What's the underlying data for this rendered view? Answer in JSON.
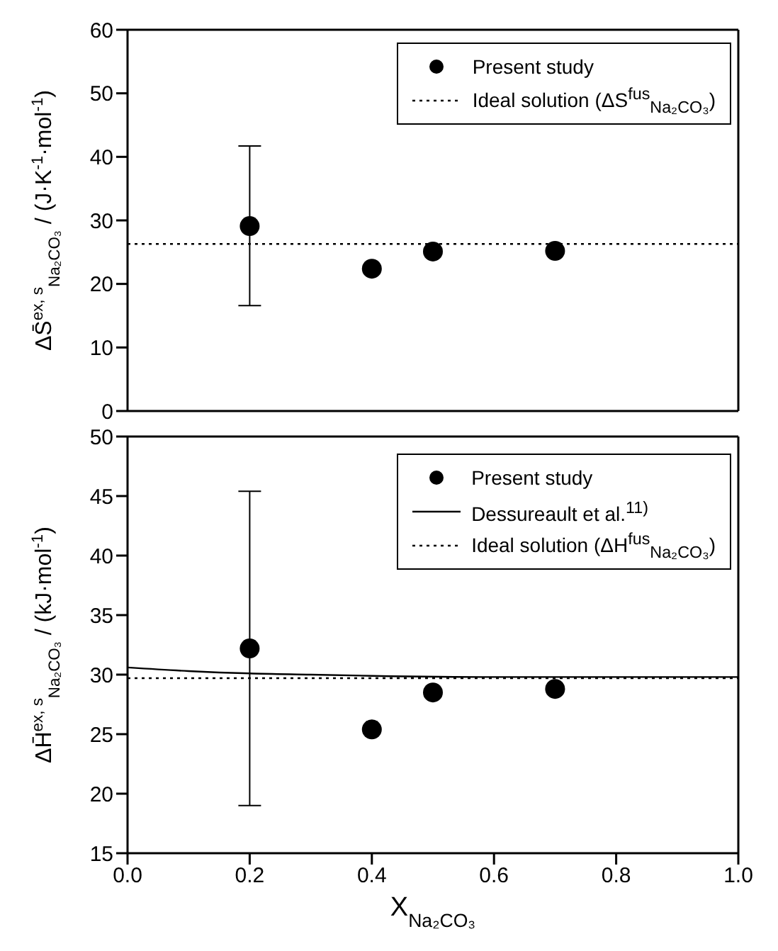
{
  "chart_data": [
    {
      "type": "scatter",
      "ylabel": "ΔS̄$^{ex, s}$$_{Na₂CO₃}$ / (J·K$^{-1}$·mol$^{-1}$)",
      "xlim": [
        0,
        1
      ],
      "xticks": [
        0,
        0.2,
        0.4,
        0.6,
        0.8,
        1.0
      ],
      "ylim": [
        0,
        60
      ],
      "yticks": [
        0,
        10,
        20,
        30,
        40,
        50,
        60
      ],
      "tick_labels": "y",
      "legend": "top right",
      "series": [
        {
          "name": "Present study",
          "marker": "circle",
          "color": "#000000",
          "x": [
            0.2,
            0.4,
            0.5,
            0.7
          ],
          "values": [
            29.1,
            22.4,
            25.1,
            25.2
          ],
          "errors": [
            [
              16.6,
              41.7
            ],
            null,
            null,
            null
          ]
        },
        {
          "name": "Ideal solution (ΔS$^{fus}$$_{Na₂CO₃}$)",
          "type": "line",
          "color": "#000000",
          "line_style": "dotted",
          "x": [
            0,
            1
          ],
          "values": [
            26.3,
            26.3
          ]
        }
      ]
    },
    {
      "type": "scatter",
      "ylabel": "ΔH̄$^{ex, s}$$_{Na₂CO₃}$ / (kJ·mol$^{-1}$)",
      "xlabel": "X$_{Na₂CO₃}$",
      "xlim": [
        0,
        1
      ],
      "xticks": [
        {
          "value": 0,
          "label": "0.0"
        },
        0.2,
        0.4,
        0.6,
        0.8,
        {
          "value": 1,
          "label": "1.0"
        }
      ],
      "ylim": [
        15,
        50
      ],
      "yticks": [
        15,
        20,
        25,
        30,
        35,
        40,
        45,
        50
      ],
      "legend": "top right",
      "series": [
        {
          "name": "Present study",
          "marker": "circle",
          "color": "#000000",
          "x": [
            0.2,
            0.4,
            0.5,
            0.7
          ],
          "values": [
            32.2,
            25.4,
            28.5,
            28.8
          ],
          "errors": [
            [
              19.0,
              45.4
            ],
            null,
            null,
            null
          ]
        },
        {
          "name": "Dessureault et al.$^{11)}$",
          "type": "line",
          "color": "#000000",
          "line_style": "solid",
          "x": [
            0,
            0.1,
            0.2,
            0.3,
            0.4,
            0.6,
            0.8,
            1.0
          ],
          "values": [
            30.6,
            30.3,
            30.1,
            30.0,
            29.9,
            29.8,
            29.8,
            29.8
          ]
        },
        {
          "name": "Ideal solution (ΔH$^{fus}$$_{Na₂CO₃}$)",
          "type": "line",
          "color": "#000000",
          "line_style": "dotted",
          "x": [
            0,
            1
          ],
          "values": [
            29.7,
            29.7
          ]
        }
      ]
    }
  ]
}
